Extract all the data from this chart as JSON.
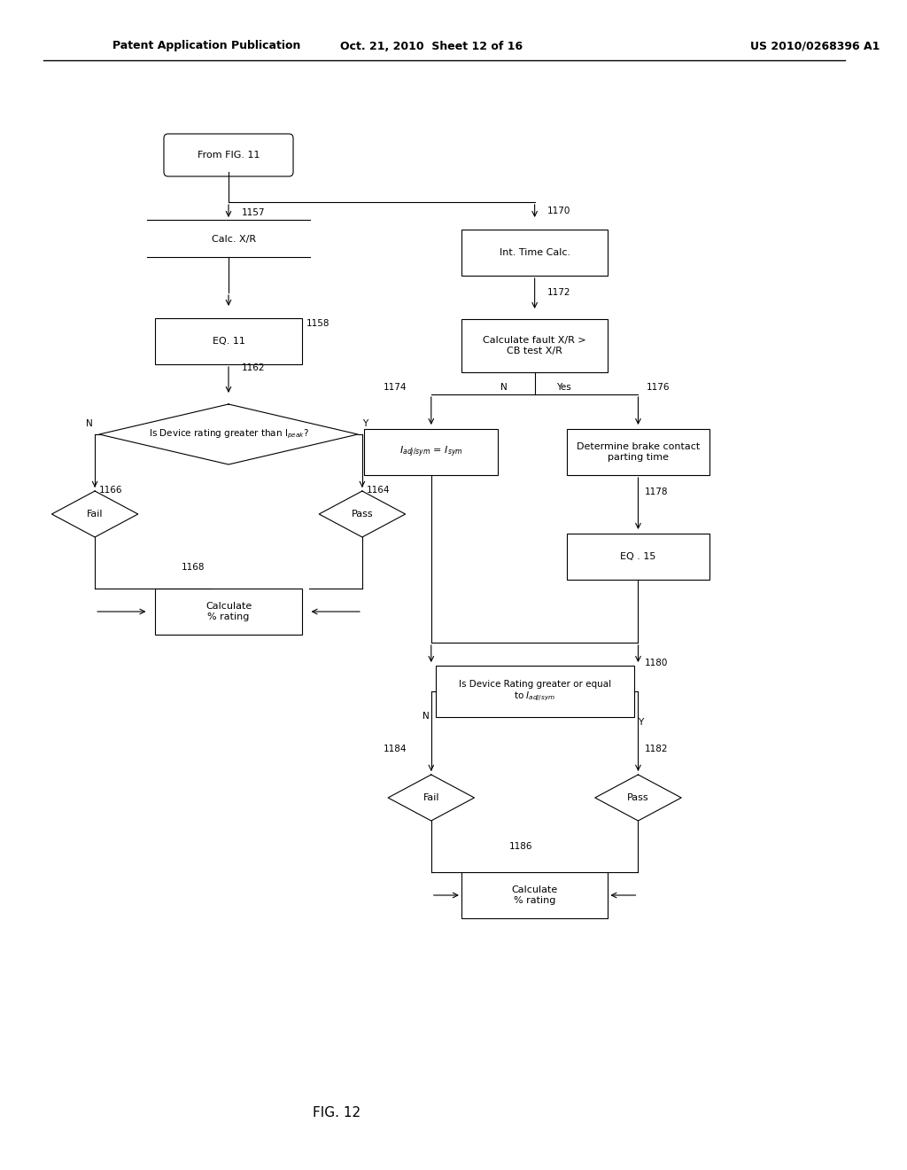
{
  "bg_color": "#ffffff",
  "header_left": "Patent Application Publication",
  "header_mid": "Oct. 21, 2010  Sheet 12 of 16",
  "header_right": "US 2010/0268396 A1",
  "fig_label": "FIG. 12"
}
